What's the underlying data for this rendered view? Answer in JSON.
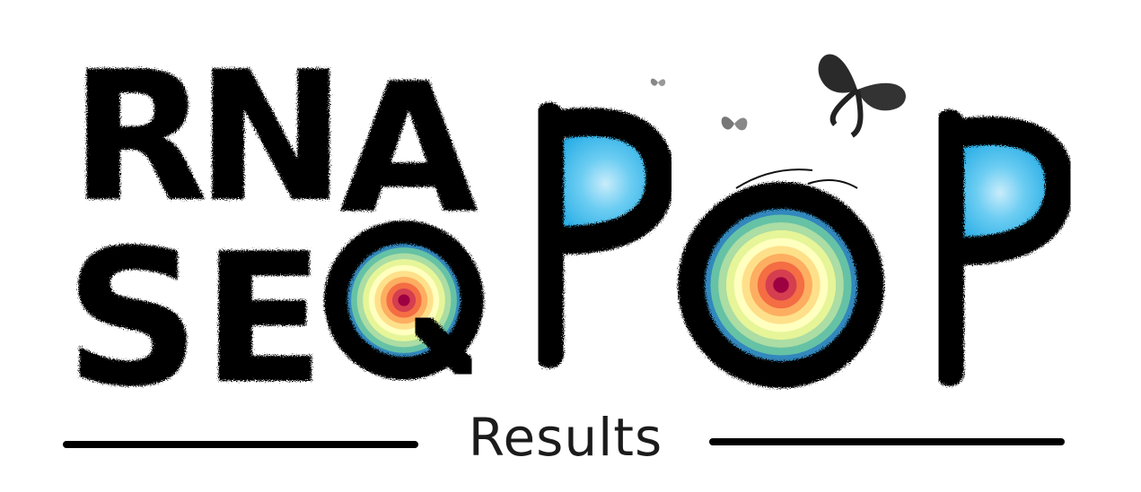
{
  "logo": {
    "line1": [
      "R",
      "N",
      "A"
    ],
    "line2": [
      "S",
      "E",
      "Q"
    ],
    "pop": [
      "P",
      "O",
      "P"
    ],
    "ink_color": "#000000",
    "fill_color_blue": "#3ab8ea",
    "rainbow_colors": [
      "#5e4fa2",
      "#3288bd",
      "#66c2a5",
      "#abdda4",
      "#e6f598",
      "#ffffbf",
      "#fee08b",
      "#fdae61",
      "#f46d43",
      "#d53e4f",
      "#9e0142"
    ],
    "decorations": [
      "butterfly-icon",
      "butterfly-icon",
      "butterfly-icon",
      "leaf-sprig-icon"
    ]
  },
  "subtitle": "Results"
}
